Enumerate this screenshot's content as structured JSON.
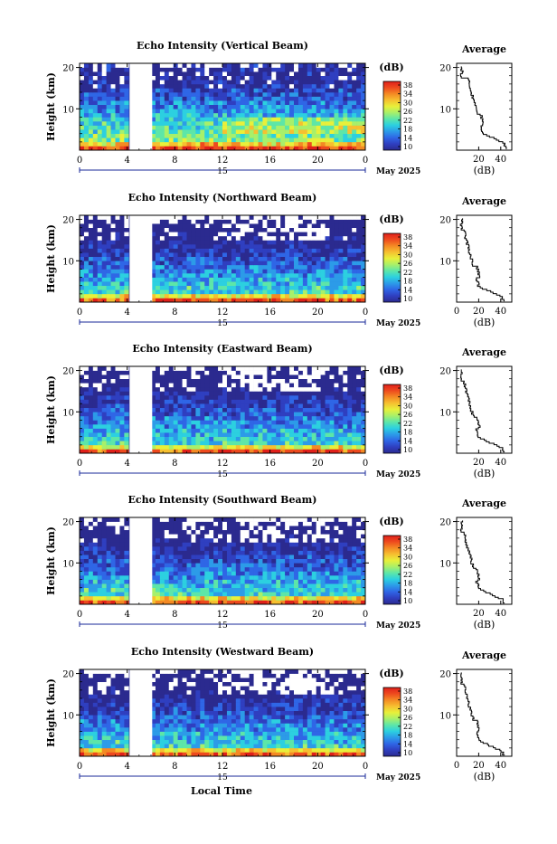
{
  "chart_data": [
    {
      "type": "heatmap",
      "title": "Echo Intensity (Vertical Beam)",
      "ylabel": "Height (km)",
      "y_ticks": [
        "20",
        "10"
      ],
      "x_ticks": [
        "0",
        "4",
        "8",
        "12",
        "16",
        "20",
        "0"
      ],
      "date_tick": "15",
      "date_label": "May 2025",
      "colorbar_unit": "(dB)",
      "colorbar_ticks": [
        "38",
        "34",
        "30",
        "26",
        "22",
        "18",
        "14",
        "10"
      ],
      "profile": {
        "title": "Average",
        "y_ticks": [
          "20",
          "10"
        ],
        "x_ticks": [
          "20",
          "40"
        ],
        "xlabel": "(dB)",
        "xlim": [
          0,
          50
        ]
      }
    },
    {
      "type": "heatmap",
      "title": "Echo Intensity (Northward Beam)",
      "ylabel": "Height (km)",
      "y_ticks": [
        "20",
        "10"
      ],
      "x_ticks": [
        "0",
        "4",
        "8",
        "12",
        "16",
        "20",
        "0"
      ],
      "date_tick": "15",
      "date_label": "May 2025",
      "colorbar_unit": "(dB)",
      "colorbar_ticks": [
        "38",
        "34",
        "30",
        "26",
        "22",
        "18",
        "14",
        "10"
      ],
      "profile": {
        "title": "Average",
        "y_ticks": [
          "20",
          "10"
        ],
        "x_ticks": [
          "0",
          "20",
          "40"
        ],
        "xlabel": "(dB)",
        "xlim": [
          0,
          50
        ]
      }
    },
    {
      "type": "heatmap",
      "title": "Echo Intensity (Eastward Beam)",
      "ylabel": "Height (km)",
      "y_ticks": [
        "20",
        "10"
      ],
      "x_ticks": [
        "0",
        "4",
        "8",
        "12",
        "16",
        "20",
        "0"
      ],
      "date_tick": "15",
      "date_label": "May 2025",
      "colorbar_unit": "(dB)",
      "colorbar_ticks": [
        "38",
        "34",
        "30",
        "26",
        "22",
        "18",
        "14",
        "10"
      ],
      "profile": {
        "title": "Average",
        "y_ticks": [
          "20",
          "10"
        ],
        "x_ticks": [
          "20",
          "40"
        ],
        "xlabel": "(dB)",
        "xlim": [
          0,
          50
        ]
      }
    },
    {
      "type": "heatmap",
      "title": "Echo Intensity (Southward Beam)",
      "ylabel": "Height (km)",
      "y_ticks": [
        "20",
        "10"
      ],
      "x_ticks": [
        "0",
        "4",
        "8",
        "12",
        "16",
        "20",
        "0"
      ],
      "date_tick": "15",
      "date_label": "May 2025",
      "colorbar_unit": "(dB)",
      "colorbar_ticks": [
        "38",
        "34",
        "30",
        "26",
        "22",
        "18",
        "14",
        "10"
      ],
      "profile": {
        "title": "Average",
        "y_ticks": [
          "20",
          "10"
        ],
        "x_ticks": [
          "20",
          "40"
        ],
        "xlabel": "(dB)",
        "xlim": [
          0,
          50
        ]
      }
    },
    {
      "type": "heatmap",
      "title": "Echo Intensity (Westward Beam)",
      "ylabel": "Height (km)",
      "y_ticks": [
        "20",
        "10"
      ],
      "x_ticks": [
        "0",
        "4",
        "8",
        "12",
        "16",
        "20",
        "0"
      ],
      "date_tick": "15",
      "date_label": "May 2025",
      "colorbar_unit": "(dB)",
      "colorbar_ticks": [
        "38",
        "34",
        "30",
        "26",
        "22",
        "18",
        "14",
        "10"
      ],
      "profile": {
        "title": "Average",
        "y_ticks": [
          "20",
          "10"
        ],
        "x_ticks": [
          "0",
          "20",
          "40"
        ],
        "xlabel": "(dB)",
        "xlim": [
          0,
          50
        ]
      }
    }
  ],
  "xaxis_label": "Local Time",
  "colormap": [
    "#2b2a8f",
    "#2f3fc0",
    "#2f66e6",
    "#2c9be8",
    "#2cd0e0",
    "#5de6a8",
    "#a8f06a",
    "#e8f03a",
    "#f6c030",
    "#f48a24",
    "#ee4a1e",
    "#e0201a"
  ],
  "data_gap_hours": [
    4.2,
    6.1
  ]
}
